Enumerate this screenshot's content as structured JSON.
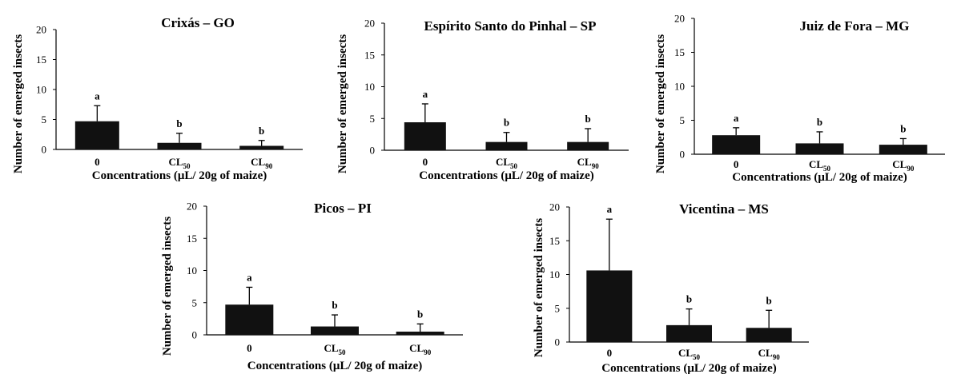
{
  "figure": {
    "caption": ""
  },
  "chart_data": [
    {
      "type": "bar",
      "title": "Crixás – GO",
      "ylabel": "Number of emerged insects",
      "xlabel": "Concentrations  (μL/ 20g of maize)",
      "categories": [
        {
          "base": "0",
          "sub": ""
        },
        {
          "base": "CL",
          "sub": "50"
        },
        {
          "base": "CL",
          "sub": "90"
        }
      ],
      "values": [
        4.7,
        1.1,
        0.6
      ],
      "errors": [
        2.6,
        1.6,
        0.9
      ],
      "letters": [
        "a",
        "b",
        "b"
      ],
      "ylim": [
        0,
        20
      ],
      "yticks": [
        0,
        5,
        10,
        15,
        20
      ],
      "bar_color": "#111111",
      "grid": false,
      "legend": "none"
    },
    {
      "type": "bar",
      "title": "Espírito Santo do Pinhal – SP",
      "ylabel": "Number of emerged insects",
      "xlabel": "Concentrations  (μL/ 20g of maize)",
      "categories": [
        {
          "base": "0",
          "sub": ""
        },
        {
          "base": "CL",
          "sub": "50"
        },
        {
          "base": "CL",
          "sub": "90"
        }
      ],
      "values": [
        4.4,
        1.3,
        1.3
      ],
      "errors": [
        2.9,
        1.5,
        2.1
      ],
      "letters": [
        "a",
        "b",
        "b"
      ],
      "ylim": [
        0,
        20
      ],
      "yticks": [
        0,
        5,
        10,
        15,
        20
      ],
      "bar_color": "#111111",
      "grid": false,
      "legend": "none"
    },
    {
      "type": "bar",
      "title": "Juiz de Fora – MG",
      "ylabel": "Number of emerged insects",
      "xlabel": "Concentrations  (μL/ 20g of maize)",
      "categories": [
        {
          "base": "0",
          "sub": ""
        },
        {
          "base": "CL",
          "sub": "50"
        },
        {
          "base": "CL",
          "sub": "90"
        }
      ],
      "values": [
        2.8,
        1.6,
        1.4
      ],
      "errors": [
        1.1,
        1.7,
        0.9
      ],
      "letters": [
        "a",
        "b",
        "b"
      ],
      "ylim": [
        0,
        20
      ],
      "yticks": [
        0,
        5,
        10,
        15,
        20
      ],
      "bar_color": "#111111",
      "grid": false,
      "legend": "none"
    },
    {
      "type": "bar",
      "title": "Picos – PI",
      "ylabel": "Number of emerged insects",
      "xlabel": "Concentrations  (μL/ 20g of maize)",
      "categories": [
        {
          "base": "0",
          "sub": ""
        },
        {
          "base": "CL",
          "sub": "50"
        },
        {
          "base": "CL",
          "sub": "90"
        }
      ],
      "values": [
        4.7,
        1.3,
        0.5
      ],
      "errors": [
        2.7,
        1.8,
        1.2
      ],
      "letters": [
        "a",
        "b",
        "b"
      ],
      "ylim": [
        0,
        20
      ],
      "yticks": [
        0,
        5,
        10,
        15,
        20
      ],
      "bar_color": "#111111",
      "grid": false,
      "legend": "none"
    },
    {
      "type": "bar",
      "title": "Vicentina – MS",
      "ylabel": "Number of emerged insects",
      "xlabel": "Concentrations  (μL/ 20g of maize)",
      "categories": [
        {
          "base": "0",
          "sub": ""
        },
        {
          "base": "CL",
          "sub": "50"
        },
        {
          "base": "CL",
          "sub": "90"
        }
      ],
      "values": [
        10.6,
        2.5,
        2.1
      ],
      "errors": [
        7.6,
        2.4,
        2.6
      ],
      "letters": [
        "a",
        "b",
        "b"
      ],
      "ylim": [
        0,
        20
      ],
      "yticks": [
        0,
        5,
        10,
        15,
        20
      ],
      "bar_color": "#111111",
      "grid": false,
      "legend": "none"
    }
  ]
}
